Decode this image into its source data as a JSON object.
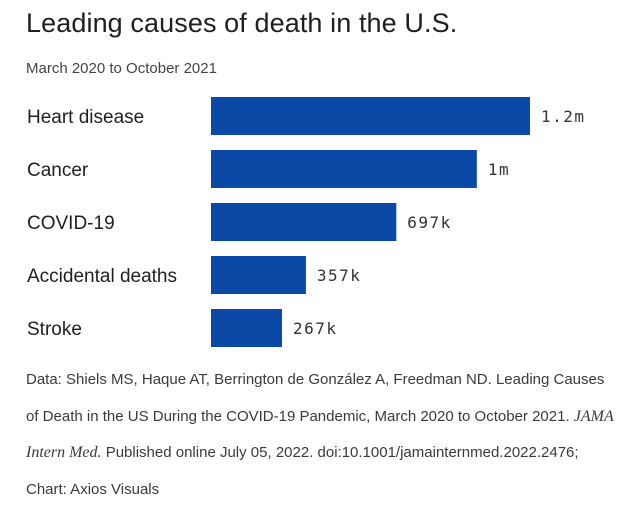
{
  "chart_data": {
    "type": "bar",
    "orientation": "horizontal",
    "title": "Leading causes of death in the U.S.",
    "subtitle": "March 2020 to October 2021",
    "categories": [
      "Heart disease",
      "Cancer",
      "COVID-19",
      "Accidental deaths",
      "Stroke"
    ],
    "values": [
      1200000,
      1000000,
      697000,
      357000,
      267000
    ],
    "value_labels": [
      "1.2m",
      "1m",
      "697k",
      "357k",
      "267k"
    ],
    "bar_color": "#0a4aa6",
    "xlim": [
      0,
      1200000
    ],
    "grid": false,
    "legend": "none"
  },
  "source": {
    "part1": "Data: Shiels MS, Haque AT, Berrington de González A, Freedman ND. Leading Causes of Death in the US During the COVID-19 Pandemic, March 2020 to October 2021.",
    "journal": "JAMA Intern Med.",
    "part2": "Published online July 05, 2022. doi:10.1001/jamainternmed.2022.2476; Chart: Axios Visuals"
  }
}
